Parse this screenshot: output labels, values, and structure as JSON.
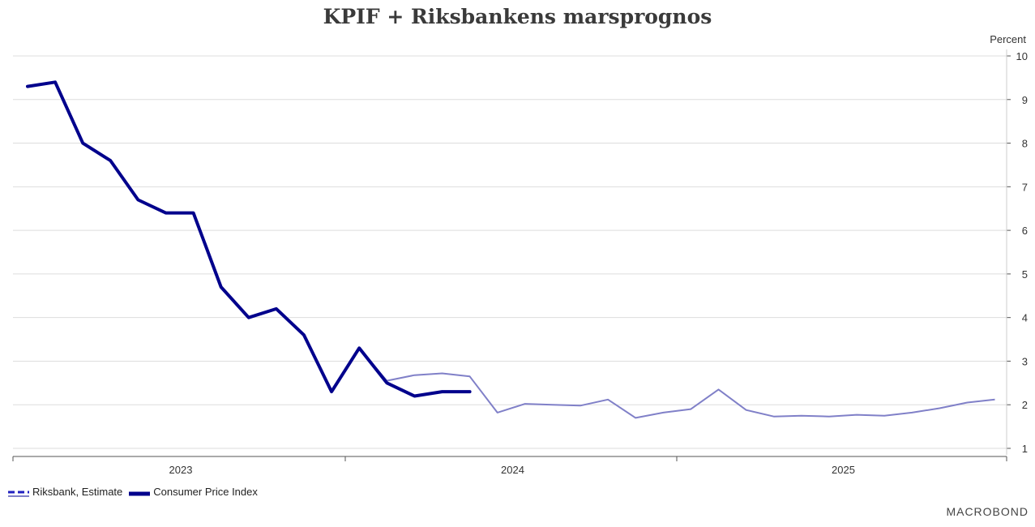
{
  "chart_data": {
    "type": "line",
    "title": "KPIF + Riksbankens marsprognos",
    "ylabel": "Percent",
    "ylim": [
      1,
      10
    ],
    "yticks": [
      1,
      2,
      3,
      4,
      5,
      6,
      7,
      8,
      9,
      10
    ],
    "x_year_labels": [
      "2023",
      "2024",
      "2025"
    ],
    "grid": true,
    "legend_position": "bottom-left",
    "x_months": [
      "2022-12",
      "2023-01",
      "2023-02",
      "2023-03",
      "2023-04",
      "2023-05",
      "2023-06",
      "2023-07",
      "2023-08",
      "2023-09",
      "2023-10",
      "2023-11",
      "2023-12",
      "2024-01",
      "2024-02",
      "2024-03",
      "2024-04",
      "2024-05",
      "2024-06",
      "2024-07",
      "2024-08",
      "2024-09",
      "2024-10",
      "2024-11",
      "2024-12",
      "2025-01",
      "2025-02",
      "2025-03",
      "2025-04",
      "2025-05",
      "2025-06",
      "2025-07",
      "2025-08",
      "2025-09",
      "2025-10",
      "2025-11",
      "2025-12"
    ],
    "series": [
      {
        "name": "Riksbank, Estimate",
        "color": "#8080c8",
        "style": "dashed-thin",
        "values": [
          9.3,
          9.4,
          8.0,
          7.6,
          6.7,
          6.4,
          6.4,
          4.7,
          4.0,
          4.2,
          3.6,
          2.3,
          3.3,
          2.55,
          2.68,
          2.72,
          2.65,
          1.82,
          2.02,
          2.0,
          1.98,
          2.12,
          1.7,
          1.82,
          1.9,
          2.35,
          1.88,
          1.73,
          1.75,
          1.73,
          1.77,
          1.75,
          1.82,
          1.92,
          2.05,
          2.12
        ]
      },
      {
        "name": "Consumer Price Index",
        "color": "#00008c",
        "style": "solid-thick",
        "values": [
          9.3,
          9.4,
          8.0,
          7.6,
          6.7,
          6.4,
          6.4,
          4.7,
          4.0,
          4.2,
          3.6,
          2.3,
          3.3,
          2.5,
          2.2,
          2.3,
          2.3
        ]
      }
    ]
  },
  "branding": {
    "logo_text": "MACROBOND"
  }
}
